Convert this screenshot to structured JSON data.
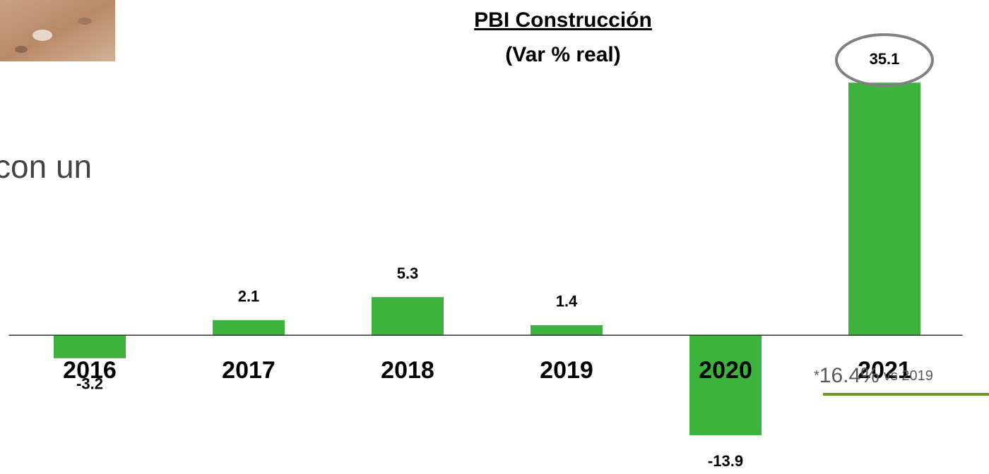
{
  "slide_text": "con un",
  "chart_data": {
    "type": "bar",
    "title": "PBI Construcción",
    "subtitle": "(Var % real)",
    "categories": [
      "2016",
      "2017",
      "2018",
      "2019",
      "2020",
      "2021"
    ],
    "values": [
      -3.2,
      2.1,
      5.3,
      1.4,
      -13.9,
      35.1
    ],
    "color": "#3db33d",
    "ylim": [
      -14,
      36
    ],
    "annotation": [
      "*",
      "16.4%",
      "vs 2019"
    ]
  }
}
